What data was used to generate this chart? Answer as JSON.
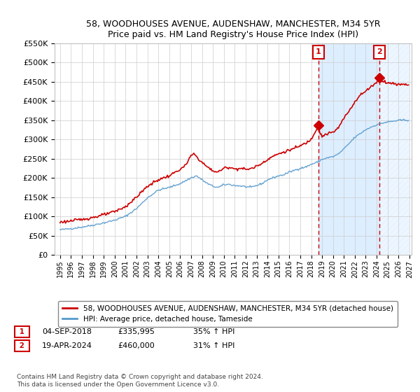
{
  "title": "58, WOODHOUSES AVENUE, AUDENSHAW, MANCHESTER, M34 5YR",
  "subtitle": "Price paid vs. HM Land Registry's House Price Index (HPI)",
  "legend_line1": "58, WOODHOUSES AVENUE, AUDENSHAW, MANCHESTER, M34 5YR (detached house)",
  "legend_line2": "HPI: Average price, detached house, Tameside",
  "annotation1_date": "04-SEP-2018",
  "annotation1_price": "£335,995",
  "annotation1_hpi": "35% ↑ HPI",
  "annotation2_date": "19-APR-2024",
  "annotation2_price": "£460,000",
  "annotation2_hpi": "31% ↑ HPI",
  "footnote": "Contains HM Land Registry data © Crown copyright and database right 2024.\nThis data is licensed under the Open Government Licence v3.0.",
  "red_color": "#cc0000",
  "blue_color": "#5599cc",
  "shade_color": "#ddeeff",
  "annotation_box_edgecolor": "#cc0000",
  "ylim": [
    0,
    550000
  ],
  "yticks": [
    0,
    50000,
    100000,
    150000,
    200000,
    250000,
    300000,
    350000,
    400000,
    450000,
    500000,
    550000
  ],
  "sale1_year": 2018.67,
  "sale2_year": 2024.25,
  "sale1_price": 335995,
  "sale2_price": 460000
}
